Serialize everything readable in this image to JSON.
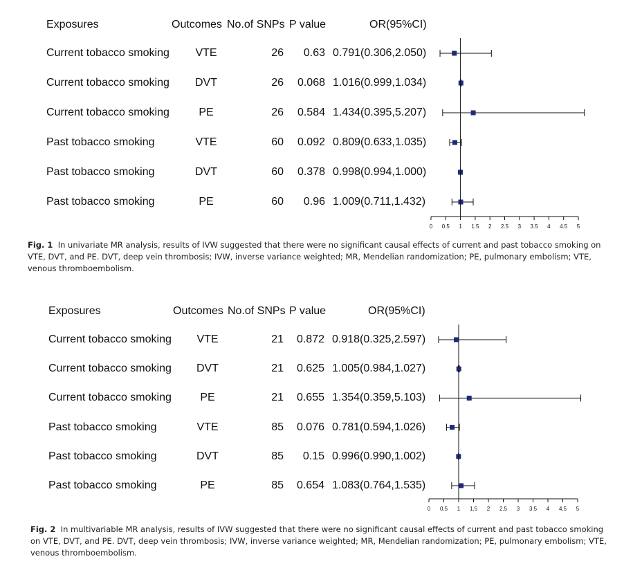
{
  "chart_data": [
    {
      "type": "forest",
      "columns": [
        "Exposures",
        "Outcomes",
        "No.of SNPs",
        "P value",
        "OR(95%CI)"
      ],
      "rows": [
        {
          "exposure": "Current tobacco smoking",
          "outcome": "VTE",
          "snps": "26",
          "p": "0.63",
          "or_text": "0.791(0.306,2.050)",
          "or": 0.791,
          "lo": 0.306,
          "hi": 2.05
        },
        {
          "exposure": "Current tobacco smoking",
          "outcome": "DVT",
          "snps": "26",
          "p": "0.068",
          "or_text": "1.016(0.999,1.034)",
          "or": 1.016,
          "lo": 0.999,
          "hi": 1.034
        },
        {
          "exposure": "Current tobacco smoking",
          "outcome": "PE",
          "snps": "26",
          "p": "0.584",
          "or_text": "1.434(0.395,5.207)",
          "or": 1.434,
          "lo": 0.395,
          "hi": 5.207
        },
        {
          "exposure": "Past tobacco smoking",
          "outcome": "VTE",
          "snps": "60",
          "p": "0.092",
          "or_text": "0.809(0.633,1.035)",
          "or": 0.809,
          "lo": 0.633,
          "hi": 1.035
        },
        {
          "exposure": "Past tobacco smoking",
          "outcome": "DVT",
          "snps": "60",
          "p": "0.378",
          "or_text": "0.998(0.994,1.000)",
          "or": 0.998,
          "lo": 0.994,
          "hi": 1.0
        },
        {
          "exposure": "Past tobacco smoking",
          "outcome": "PE",
          "snps": "60",
          "p": "0.96",
          "or_text": "1.009(0.711,1.432)",
          "or": 1.009,
          "lo": 0.711,
          "hi": 1.432
        }
      ],
      "x_ticks": [
        "0",
        "0.5",
        "1",
        "1.5",
        "2",
        "2.5",
        "3",
        "3.5",
        "4",
        "4.5",
        "5"
      ],
      "xlim": [
        0,
        5
      ],
      "reference_line": 1,
      "caption_label": "Fig. 1",
      "caption_text": "In univariate MR analysis, results of IVW suggested that there were no significant causal effects of current and past tobacco smoking on VTE, DVT, and PE. DVT, deep vein thrombosis; IVW, inverse variance weighted; MR, Mendelian randomization; PE, pulmonary embolism; VTE, venous thromboembolism."
    },
    {
      "type": "forest",
      "columns": [
        "Exposures",
        "Outcomes",
        "No.of SNPs",
        "P value",
        "OR(95%CI)"
      ],
      "rows": [
        {
          "exposure": "Current tobacco smoking",
          "outcome": "VTE",
          "snps": "21",
          "p": "0.872",
          "or_text": "0.918(0.325,2.597)",
          "or": 0.918,
          "lo": 0.325,
          "hi": 2.597
        },
        {
          "exposure": "Current tobacco smoking",
          "outcome": "DVT",
          "snps": "21",
          "p": "0.625",
          "or_text": "1.005(0.984,1.027)",
          "or": 1.005,
          "lo": 0.984,
          "hi": 1.027
        },
        {
          "exposure": "Current tobacco smoking",
          "outcome": "PE",
          "snps": "21",
          "p": "0.655",
          "or_text": "1.354(0.359,5.103)",
          "or": 1.354,
          "lo": 0.359,
          "hi": 5.103
        },
        {
          "exposure": "Past tobacco smoking",
          "outcome": "VTE",
          "snps": "85",
          "p": "0.076",
          "or_text": "0.781(0.594,1.026)",
          "or": 0.781,
          "lo": 0.594,
          "hi": 1.026
        },
        {
          "exposure": "Past tobacco smoking",
          "outcome": "DVT",
          "snps": "85",
          "p": "0.15",
          "or_text": "0.996(0.990,1.002)",
          "or": 0.996,
          "lo": 0.99,
          "hi": 1.002
        },
        {
          "exposure": "Past tobacco smoking",
          "outcome": "PE",
          "snps": "85",
          "p": "0.654",
          "or_text": "1.083(0.764,1.535)",
          "or": 1.083,
          "lo": 0.764,
          "hi": 1.535
        }
      ],
      "x_ticks": [
        "0",
        "0.5",
        "1",
        "1.5",
        "2",
        "2.5",
        "3",
        "3.5",
        "4",
        "4.5",
        "5"
      ],
      "xlim": [
        0,
        5
      ],
      "reference_line": 1,
      "caption_label": "Fig. 2",
      "caption_text": "In multivariable MR analysis, results of IVW suggested that there were no significant causal effects of current and past tobacco smoking on VTE, DVT, and PE. DVT, deep vein thrombosis; IVW, inverse variance weighted; MR, Mendelian randomization; PE, pulmonary embolism; VTE, venous thromboembolism."
    }
  ],
  "colors": {
    "marker": "#1f2a7a",
    "ci_line": "#111111",
    "axis": "#111111",
    "text": "#111111"
  }
}
